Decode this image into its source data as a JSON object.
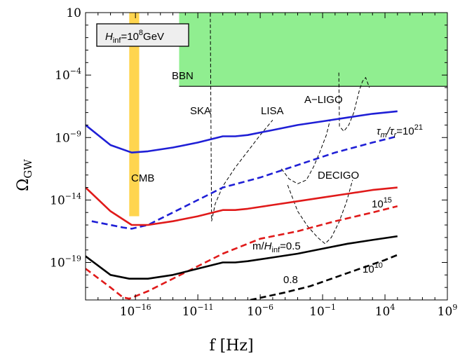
{
  "chart_data": {
    "type": "line",
    "title": "",
    "xlabel": "f [Hz]",
    "ylabel": "Ω_GW",
    "x_scale": "log",
    "y_scale": "log",
    "xlim_log10": [
      -20,
      9
    ],
    "ylim_log10": [
      -22,
      1
    ],
    "x_ticks": [
      {
        "base": "10",
        "exp": "−16",
        "log10": -16
      },
      {
        "base": "10",
        "exp": "−11",
        "log10": -11
      },
      {
        "base": "10",
        "exp": "−6",
        "log10": -6
      },
      {
        "base": "10",
        "exp": "−1",
        "log10": -1
      },
      {
        "base": "10",
        "exp": "4",
        "log10": 4
      },
      {
        "base": "10",
        "exp": "9",
        "log10": 9
      }
    ],
    "y_ticks": [
      {
        "base": "10",
        "exp": "",
        "log10": 1
      },
      {
        "base": "10",
        "exp": "−4",
        "log10": -4
      },
      {
        "base": "10",
        "exp": "−9",
        "log10": -9
      },
      {
        "base": "10",
        "exp": "−14",
        "log10": -14
      },
      {
        "base": "10",
        "exp": "−19",
        "log10": -19
      }
    ],
    "regions": [
      {
        "label": "BBN",
        "x_log10": [
          -12.5,
          9
        ],
        "y_log10": [
          -4.9,
          1
        ],
        "color": "#90ee90"
      },
      {
        "label": "CMB",
        "x_log10": [
          -16.5,
          -15.7
        ],
        "y_log10": [
          -15.3,
          1
        ],
        "color": "#ffd54f"
      }
    ],
    "series": [
      {
        "color": "#1f1fd6",
        "dash": false,
        "x_log10": [
          -20,
          -18,
          -16.3,
          -15,
          -13,
          -11,
          -9,
          -8,
          -7,
          -5,
          -3,
          -1,
          1,
          3,
          5
        ],
        "y_log10": [
          -8.0,
          -9.6,
          -10.2,
          -10.1,
          -9.8,
          -9.4,
          -8.9,
          -8.9,
          -8.8,
          -8.4,
          -8.0,
          -7.7,
          -7.4,
          -7.1,
          -6.9
        ]
      },
      {
        "color": "#1f1fd6",
        "dash": true,
        "x_log10": [
          -19.5,
          -17,
          -16.3,
          -15,
          -13,
          -11,
          -9,
          -6,
          -3,
          0,
          3,
          5
        ],
        "y_log10": [
          -15.7,
          -16.2,
          -16.3,
          -16.0,
          -15.0,
          -14.0,
          -13.0,
          -12.2,
          -11.2,
          -10.2,
          -9.4,
          -8.9
        ]
      },
      {
        "color": "#e01a1a",
        "dash": false,
        "x_log10": [
          -20,
          -18,
          -16.3,
          -15,
          -13,
          -11,
          -9,
          -8,
          -7,
          -5,
          -3,
          -1,
          1,
          3,
          5
        ],
        "y_log10": [
          -13.0,
          -14.9,
          -16.0,
          -16.0,
          -15.7,
          -15.3,
          -14.8,
          -14.8,
          -14.7,
          -14.4,
          -14.1,
          -13.8,
          -13.5,
          -13.2,
          -13.0
        ]
      },
      {
        "color": "#e01a1a",
        "dash": true,
        "x_log10": [
          -20,
          -18,
          -17,
          -16.5,
          -15,
          -12,
          -9,
          -6,
          -3,
          0,
          3,
          5
        ],
        "y_log10": [
          -19.5,
          -21.0,
          -21.8,
          -21.9,
          -21.3,
          -19.8,
          -18.3,
          -17.1,
          -16.5,
          -15.7,
          -15.0,
          -14.5
        ]
      },
      {
        "color": "#000000",
        "dash": false,
        "x_log10": [
          -20,
          -18,
          -16.5,
          -15,
          -13,
          -11,
          -9,
          -8,
          -7,
          -5,
          -3,
          -1,
          1,
          3,
          5
        ],
        "y_log10": [
          -18.5,
          -20.0,
          -20.3,
          -20.3,
          -20.0,
          -19.5,
          -19.0,
          -19.0,
          -18.9,
          -18.6,
          -18.3,
          -17.9,
          -17.5,
          -17.2,
          -16.9
        ]
      },
      {
        "color": "#000000",
        "dash": true,
        "x_log10": [
          -6.8,
          -4,
          -2,
          0,
          2,
          4,
          5
        ],
        "y_log10": [
          -22,
          -21.4,
          -20.9,
          -20.2,
          -19.5,
          -18.8,
          -18.4
        ]
      }
    ],
    "sensitivity_curves": [
      {
        "label": "SKA",
        "x_log10": [
          -10.0,
          -9.9,
          -9.6,
          -9.0,
          -8.0,
          -7.0,
          -6.0,
          -5.0
        ],
        "y_log10": [
          0.95,
          -15.7,
          -14.3,
          -12.9,
          -11.4,
          -10.1,
          -8.8,
          -7.6
        ]
      },
      {
        "label": "LISA",
        "x_log10": [
          -4.3,
          -3.7,
          -3.0,
          -2.3,
          -1.7,
          -1.2,
          -0.7,
          -0.4
        ],
        "y_log10": [
          -11.5,
          -12.3,
          -12.7,
          -12.4,
          -11.3,
          -10.1,
          -8.8,
          -7.6
        ]
      },
      {
        "label": "DECIGO",
        "x_log10": [
          -3.8,
          -3.0,
          -2.2,
          -1.4,
          -0.8,
          -0.3,
          0.3,
          0.9,
          1.4
        ],
        "y_log10": [
          -12.8,
          -14.9,
          -16.1,
          -17.0,
          -17.5,
          -17.0,
          -15.8,
          -14.2,
          -12.4
        ]
      },
      {
        "label": "A-LIGO",
        "x_log10": [
          0.3,
          0.35,
          0.7,
          1.1,
          1.5,
          1.75,
          1.95,
          2.2,
          2.45,
          2.75
        ],
        "y_log10": [
          -3.8,
          -8.1,
          -8.5,
          -8.0,
          -7.0,
          -6.0,
          -5.2,
          -4.5,
          -4.2,
          -5.0
        ]
      }
    ],
    "annotations": [
      {
        "text": "m/",
        "sub": "",
        "italic_part": "H",
        "italic_sub": "inf",
        "tail": "=0.5"
      },
      {
        "text": "0.8"
      },
      {
        "text": "CMB"
      },
      {
        "text": "BBN"
      },
      {
        "text": "SKA"
      },
      {
        "text": "LISA"
      },
      {
        "text": "A−LIGO"
      },
      {
        "text": "DECIGO"
      },
      {
        "text": "10",
        "sup": "15"
      },
      {
        "text": "10",
        "sup": "10"
      },
      {
        "text": "τ",
        "sub": "m",
        "mid": "/τ",
        "sub2": "r",
        "tail": "=10",
        "sup": "21"
      }
    ],
    "legend_box": {
      "prefix": "H",
      "sub": "inf",
      "eq": "=10",
      "sup": "8",
      "unit": "GeV"
    },
    "grid": false,
    "legend": "none"
  }
}
